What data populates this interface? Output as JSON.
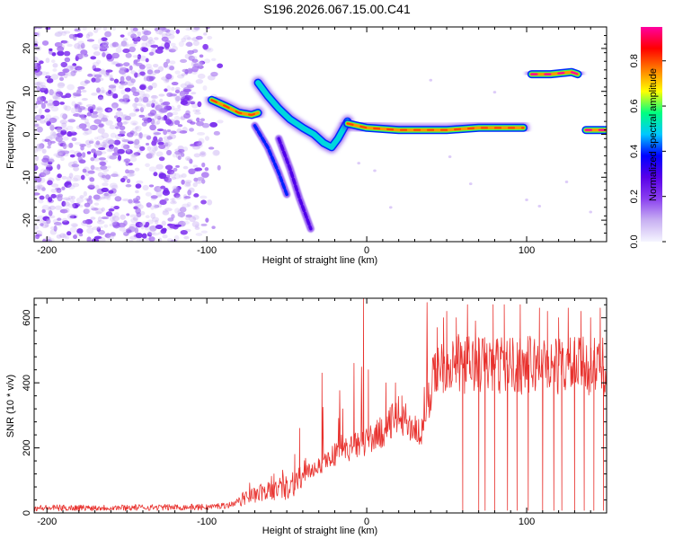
{
  "title": "S196.2026.067.15.00.C41",
  "chart_data": [
    {
      "type": "heatmap",
      "xlabel": "Height of straight line (km)",
      "ylabel": "Frequency (Hz)",
      "xlim": [
        -208,
        150
      ],
      "ylim": [
        -25,
        25
      ],
      "xticks": [
        -200,
        -100,
        0,
        100
      ],
      "yticks": [
        -20,
        -10,
        0,
        10,
        20
      ],
      "colorbar": {
        "label": "Normalized spectral amplitude",
        "range": [
          0,
          0.95
        ],
        "ticks": [
          "0.0",
          "0.2",
          "0.4",
          "0.6",
          "0.8"
        ],
        "colors": [
          "#f5f5ff",
          "#c8b0f2",
          "#8a3ff0",
          "#5800e8",
          "#0000ff",
          "#00c8ff",
          "#00ff80",
          "#ffff00",
          "#ff8000",
          "#ff0000",
          "#ff00a0"
        ]
      },
      "noise_region": {
        "x": [
          -208,
          -88
        ],
        "y": [
          -25,
          25
        ]
      },
      "tracks": [
        {
          "points": [
            [
              -97,
              8
            ],
            [
              -88,
              6.5
            ],
            [
              -80,
              5
            ],
            [
              -72,
              4.5
            ],
            [
              -68,
              5
            ]
          ],
          "level": 0.8
        },
        {
          "points": [
            [
              -68,
              12
            ],
            [
              -62,
              9
            ],
            [
              -55,
              6
            ],
            [
              -48,
              3.5
            ],
            [
              -40,
              1.5
            ],
            [
              -33,
              0
            ],
            [
              -27,
              -2
            ],
            [
              -22,
              -3
            ],
            [
              -18,
              -1
            ],
            [
              -12,
              3
            ]
          ],
          "level": 0.5
        },
        {
          "points": [
            [
              -12,
              2.5
            ],
            [
              0,
              1.5
            ],
            [
              20,
              1
            ],
            [
              50,
              1
            ],
            [
              70,
              1.5
            ],
            [
              90,
              1.5
            ],
            [
              98,
              1.5
            ]
          ],
          "level": 0.8
        },
        {
          "points": [
            [
              103,
              14
            ],
            [
              115,
              14
            ],
            [
              128,
              14.5
            ],
            [
              132,
              14
            ]
          ],
          "level": 0.95
        },
        {
          "points": [
            [
              137,
              1
            ],
            [
              150,
              1
            ]
          ],
          "level": 0.95
        }
      ],
      "branches": [
        {
          "points": [
            [
              -70,
              2
            ],
            [
              -62,
              -3
            ],
            [
              -55,
              -9
            ],
            [
              -50,
              -14
            ]
          ],
          "level": 0.3
        },
        {
          "points": [
            [
              -55,
              -1
            ],
            [
              -48,
              -8
            ],
            [
              -42,
              -15
            ],
            [
              -38,
              -19
            ],
            [
              -35,
              -22
            ]
          ],
          "level": 0.2
        }
      ]
    },
    {
      "type": "line",
      "xlabel": "Height of straight line (km)",
      "ylabel": "SNR (10 * v/v)",
      "xlim": [
        -208,
        150
      ],
      "ylim": [
        0,
        660
      ],
      "xticks": [
        -200,
        -100,
        0,
        100
      ],
      "yticks": [
        0,
        200,
        400,
        600
      ],
      "color": "#e8322e",
      "baseline_profile": [
        [
          -208,
          15
        ],
        [
          -100,
          18
        ],
        [
          -85,
          25
        ],
        [
          -75,
          50
        ],
        [
          -50,
          80
        ],
        [
          -20,
          180
        ],
        [
          0,
          220
        ],
        [
          10,
          250
        ],
        [
          20,
          300
        ],
        [
          30,
          260
        ],
        [
          35,
          240
        ],
        [
          40,
          380
        ],
        [
          45,
          460
        ],
        [
          150,
          450
        ]
      ],
      "spikes": [
        [
          -58,
          120
        ],
        [
          -45,
          180
        ],
        [
          -42,
          260
        ],
        [
          -28,
          430
        ],
        [
          -15,
          320
        ],
        [
          -8,
          460
        ],
        [
          -2,
          660
        ],
        [
          1,
          440
        ],
        [
          12,
          400
        ],
        [
          18,
          400
        ],
        [
          22,
          360
        ],
        [
          44,
          570
        ],
        [
          48,
          600
        ],
        [
          50,
          620
        ],
        [
          56,
          600
        ],
        [
          63,
          640
        ],
        [
          68,
          590
        ],
        [
          79,
          640
        ],
        [
          86,
          640
        ],
        [
          96,
          640
        ],
        [
          108,
          630
        ],
        [
          113,
          620
        ],
        [
          120,
          600
        ],
        [
          126,
          630
        ],
        [
          134,
          620
        ],
        [
          140,
          600
        ],
        [
          146,
          630
        ]
      ],
      "dropouts": [
        60,
        70,
        74,
        80,
        88,
        94,
        101,
        110,
        117,
        122,
        130,
        136,
        142,
        148
      ]
    }
  ]
}
